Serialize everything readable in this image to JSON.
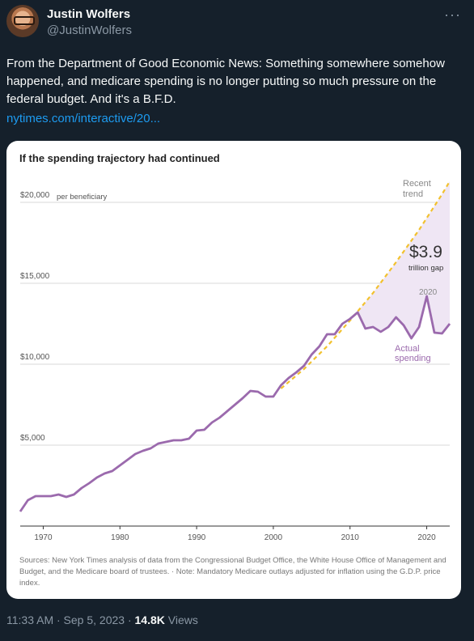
{
  "tweet": {
    "author_name": "Justin Wolfers",
    "author_handle": "@JustinWolfers",
    "more_icon": "ellipsis-icon",
    "text": "From the Department of Good Economic News: Something somewhere somehow happened, and medicare spending is no longer putting so much pressure on the federal budget. And it's a B.F.D.",
    "link": "nytimes.com/interactive/20...",
    "time": "11:33 AM · Sep 5, 2023 · ",
    "views_count": "14.8K",
    "views_label": " Views"
  },
  "chart_data": {
    "type": "line",
    "title": "If the spending trajectory had continued",
    "ylim": [
      0,
      22000
    ],
    "xlim": [
      1967,
      2023
    ],
    "y_ticks": [
      {
        "value": 20000,
        "label": "$20,000"
      },
      {
        "value": 15000,
        "label": "$15,000"
      },
      {
        "value": 10000,
        "label": "$10,000"
      },
      {
        "value": 5000,
        "label": "$5,000"
      }
    ],
    "y_unit_note": "per beneficiary",
    "x_ticks": [
      1970,
      1980,
      1990,
      2000,
      2010,
      2020
    ],
    "colors": {
      "actual": "#9b6aad",
      "trend": "#f2c12e",
      "gap_fill": "#efe6f4",
      "grid": "#d9d9d9"
    },
    "series": [
      {
        "name": "Actual spending",
        "x": [
          1967,
          1968,
          1969,
          1970,
          1971,
          1972,
          1973,
          1974,
          1975,
          1976,
          1977,
          1978,
          1979,
          1980,
          1981,
          1982,
          1983,
          1984,
          1985,
          1986,
          1987,
          1988,
          1989,
          1990,
          1991,
          1992,
          1993,
          1994,
          1995,
          1996,
          1997,
          1998,
          1999,
          2000,
          2001,
          2002,
          2003,
          2004,
          2005,
          2006,
          2007,
          2008,
          2009,
          2010,
          2011,
          2012,
          2013,
          2014,
          2015,
          2016,
          2017,
          2018,
          2019,
          2020,
          2021,
          2022,
          2023
        ],
        "y": [
          900,
          1600,
          1850,
          1850,
          1850,
          1950,
          1800,
          1950,
          2350,
          2650,
          3000,
          3250,
          3400,
          3750,
          4100,
          4450,
          4650,
          4800,
          5100,
          5200,
          5300,
          5300,
          5400,
          5900,
          5950,
          6400,
          6700,
          7100,
          7500,
          7900,
          8350,
          8300,
          8000,
          8000,
          8700,
          9150,
          9500,
          9900,
          10600,
          11100,
          11850,
          11850,
          12500,
          12800,
          13200,
          12200,
          12300,
          12000,
          12300,
          12900,
          12400,
          11600,
          12300,
          14200,
          11950,
          11900,
          12500
        ]
      },
      {
        "name": "Recent trend",
        "x": [
          2001,
          2004,
          2007,
          2010,
          2013,
          2016,
          2019,
          2022,
          2023
        ],
        "y": [
          8500,
          9700,
          11100,
          12700,
          14400,
          16300,
          18300,
          20500,
          21300
        ]
      }
    ],
    "annotations": {
      "recent_trend_line1": "Recent",
      "recent_trend_line2": "trend",
      "gap_value": "$3.9",
      "gap_label": "trillion gap",
      "year_2020": "2020",
      "actual_line1": "Actual",
      "actual_line2": "spending"
    },
    "sources": "Sources: New York Times analysis of data from the Congressional Budget Office, the White House Office of Management and Budget, and the Medicare board of trustees.   ·   Note: Mandatory Medicare outlays adjusted for inflation using the G.D.P. price index."
  }
}
